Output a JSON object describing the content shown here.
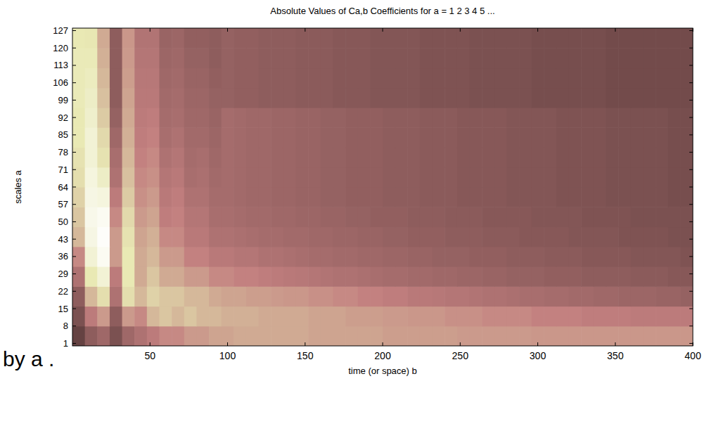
{
  "chart_data": {
    "type": "heatmap",
    "title": "Absolute Values of Ca,b Coefficients for a =  1 2 3 4 5 ...",
    "x_label": "time (or space) b",
    "y_label": "scales a",
    "annotations": [
      "by a ."
    ],
    "xlim": [
      0,
      400
    ],
    "ylim": [
      0,
      128
    ],
    "xticks": [
      50,
      100,
      150,
      200,
      250,
      300,
      350,
      400
    ],
    "yticks": [
      1,
      8,
      15,
      22,
      29,
      36,
      43,
      50,
      57,
      64,
      71,
      78,
      85,
      92,
      99,
      106,
      113,
      120,
      127
    ],
    "color_range": [
      0,
      100
    ],
    "x_edges": [
      0,
      8,
      16,
      24,
      32,
      40,
      48,
      56,
      64,
      72,
      80,
      88,
      96,
      104,
      112,
      120,
      128,
      136,
      144,
      152,
      160,
      168,
      176,
      184,
      192,
      200,
      208,
      216,
      224,
      232,
      240,
      248,
      256,
      264,
      272,
      280,
      288,
      296,
      304,
      312,
      320,
      328,
      336,
      344,
      352,
      360,
      368,
      376,
      384,
      392,
      400
    ],
    "y_edges": [
      0,
      8,
      16,
      24,
      32,
      40,
      48,
      56,
      64,
      72,
      80,
      88,
      96,
      104,
      112,
      120,
      128
    ],
    "cells": [
      [
        10,
        20,
        25,
        15,
        25,
        30,
        35,
        40,
        40,
        45,
        45,
        48,
        48,
        50,
        50,
        50,
        50,
        50,
        50,
        48,
        48,
        48,
        48,
        48,
        48,
        46,
        46,
        46,
        46,
        46,
        46,
        45,
        45,
        45,
        45,
        45,
        45,
        44,
        44,
        44,
        44,
        44,
        44,
        44,
        44,
        44,
        44,
        44,
        44,
        44
      ],
      [
        15,
        35,
        45,
        20,
        45,
        40,
        55,
        60,
        55,
        60,
        55,
        55,
        52,
        52,
        52,
        50,
        50,
        50,
        50,
        48,
        48,
        48,
        46,
        46,
        46,
        45,
        45,
        44,
        44,
        44,
        42,
        42,
        42,
        40,
        40,
        40,
        40,
        38,
        38,
        38,
        38,
        36,
        36,
        36,
        36,
        35,
        35,
        35,
        35,
        35
      ],
      [
        20,
        55,
        70,
        30,
        70,
        55,
        65,
        60,
        60,
        55,
        55,
        50,
        48,
        48,
        46,
        46,
        45,
        44,
        44,
        42,
        42,
        40,
        40,
        38,
        38,
        36,
        36,
        34,
        34,
        33,
        32,
        32,
        31,
        30,
        30,
        29,
        28,
        28,
        27,
        27,
        26,
        26,
        25,
        25,
        24,
        24,
        24,
        23,
        23,
        22
      ],
      [
        30,
        75,
        85,
        35,
        75,
        50,
        60,
        50,
        50,
        45,
        45,
        40,
        40,
        38,
        38,
        36,
        35,
        34,
        33,
        32,
        31,
        30,
        30,
        29,
        28,
        27,
        27,
        26,
        26,
        25,
        25,
        24,
        24,
        23,
        23,
        22,
        22,
        22,
        21,
        21,
        21,
        20,
        20,
        20,
        20,
        19,
        19,
        19,
        18,
        18
      ],
      [
        40,
        85,
        95,
        45,
        75,
        50,
        55,
        45,
        45,
        38,
        38,
        34,
        34,
        32,
        32,
        30,
        30,
        29,
        28,
        27,
        27,
        26,
        26,
        25,
        25,
        24,
        24,
        23,
        23,
        22,
        22,
        22,
        21,
        21,
        21,
        20,
        20,
        20,
        19,
        19,
        19,
        18,
        18,
        18,
        18,
        17,
        17,
        17,
        17,
        16
      ],
      [
        55,
        90,
        98,
        45,
        72,
        48,
        52,
        40,
        40,
        34,
        34,
        30,
        30,
        29,
        28,
        27,
        27,
        26,
        26,
        25,
        25,
        24,
        24,
        23,
        23,
        22,
        22,
        21,
        21,
        21,
        20,
        20,
        20,
        19,
        19,
        19,
        18,
        18,
        18,
        18,
        17,
        17,
        17,
        17,
        16,
        16,
        16,
        16,
        15,
        15
      ],
      [
        60,
        92,
        95,
        40,
        68,
        45,
        48,
        36,
        38,
        32,
        32,
        28,
        28,
        27,
        26,
        26,
        25,
        25,
        24,
        24,
        23,
        23,
        22,
        22,
        21,
        21,
        21,
        20,
        20,
        20,
        19,
        19,
        19,
        18,
        18,
        18,
        18,
        17,
        17,
        17,
        17,
        16,
        16,
        16,
        16,
        15,
        15,
        15,
        15,
        15
      ],
      [
        65,
        90,
        88,
        35,
        62,
        42,
        45,
        34,
        36,
        30,
        30,
        27,
        27,
        26,
        25,
        25,
        24,
        24,
        23,
        23,
        22,
        22,
        21,
        21,
        21,
        20,
        20,
        20,
        19,
        19,
        19,
        18,
        18,
        18,
        18,
        17,
        17,
        17,
        17,
        16,
        16,
        16,
        16,
        15,
        15,
        15,
        15,
        15,
        14,
        14
      ],
      [
        70,
        88,
        80,
        30,
        58,
        40,
        42,
        32,
        34,
        28,
        29,
        26,
        27,
        26,
        25,
        25,
        24,
        24,
        23,
        23,
        22,
        22,
        21,
        21,
        21,
        20,
        20,
        20,
        19,
        19,
        19,
        18,
        18,
        18,
        18,
        17,
        17,
        17,
        17,
        16,
        16,
        16,
        16,
        15,
        15,
        15,
        15,
        15,
        14,
        14
      ],
      [
        72,
        85,
        72,
        28,
        55,
        38,
        40,
        30,
        32,
        27,
        28,
        25,
        27,
        26,
        25,
        25,
        24,
        24,
        23,
        23,
        22,
        22,
        21,
        21,
        21,
        20,
        20,
        20,
        19,
        19,
        19,
        18,
        18,
        18,
        18,
        17,
        17,
        17,
        17,
        16,
        16,
        16,
        16,
        15,
        15,
        15,
        15,
        15,
        14,
        14
      ],
      [
        75,
        85,
        68,
        25,
        52,
        36,
        38,
        28,
        30,
        26,
        26,
        24,
        27,
        26,
        25,
        25,
        24,
        24,
        23,
        23,
        22,
        22,
        21,
        21,
        21,
        20,
        20,
        20,
        19,
        19,
        19,
        18,
        18,
        18,
        18,
        17,
        17,
        17,
        17,
        16,
        16,
        16,
        16,
        15,
        15,
        15,
        15,
        15,
        14,
        14
      ],
      [
        75,
        82,
        62,
        22,
        50,
        35,
        36,
        27,
        28,
        25,
        25,
        23,
        27,
        26,
        25,
        25,
        24,
        24,
        23,
        23,
        22,
        22,
        21,
        21,
        21,
        20,
        20,
        20,
        19,
        19,
        19,
        18,
        18,
        18,
        18,
        17,
        17,
        17,
        17,
        16,
        16,
        16,
        16,
        15,
        15,
        15,
        15,
        15,
        14,
        14
      ],
      [
        76,
        80,
        58,
        20,
        48,
        34,
        34,
        26,
        27,
        24,
        24,
        22,
        22,
        21,
        21,
        20,
        20,
        20,
        19,
        19,
        19,
        18,
        18,
        18,
        17,
        17,
        17,
        17,
        16,
        16,
        16,
        16,
        15,
        15,
        15,
        15,
        15,
        14,
        14,
        14,
        14,
        14,
        14,
        13,
        13,
        13,
        13,
        13,
        13,
        13
      ],
      [
        76,
        78,
        55,
        20,
        46,
        33,
        33,
        25,
        26,
        23,
        23,
        21,
        22,
        21,
        21,
        20,
        20,
        20,
        19,
        19,
        19,
        18,
        18,
        18,
        17,
        17,
        17,
        17,
        16,
        16,
        16,
        16,
        15,
        15,
        15,
        15,
        15,
        14,
        14,
        14,
        14,
        14,
        14,
        13,
        13,
        13,
        13,
        13,
        13,
        13
      ],
      [
        76,
        76,
        52,
        20,
        45,
        32,
        32,
        24,
        25,
        22,
        22,
        20,
        22,
        21,
        21,
        20,
        20,
        20,
        19,
        19,
        19,
        18,
        18,
        18,
        17,
        17,
        17,
        17,
        16,
        16,
        16,
        16,
        15,
        15,
        15,
        15,
        15,
        14,
        14,
        14,
        14,
        14,
        14,
        13,
        13,
        13,
        13,
        13,
        13,
        13
      ],
      [
        75,
        74,
        50,
        20,
        44,
        31,
        31,
        23,
        24,
        21,
        21,
        20,
        22,
        21,
        21,
        20,
        20,
        20,
        19,
        19,
        19,
        18,
        18,
        18,
        17,
        17,
        17,
        17,
        16,
        16,
        16,
        16,
        15,
        15,
        15,
        15,
        15,
        14,
        14,
        14,
        14,
        14,
        14,
        13,
        13,
        13,
        13,
        13,
        13,
        13
      ]
    ]
  }
}
